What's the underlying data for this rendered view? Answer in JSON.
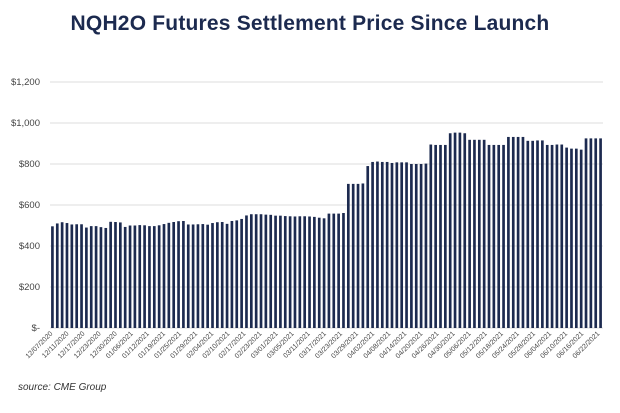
{
  "title": "NQH2O Futures Settlement Price Since Launch",
  "source": "source: CME Group",
  "chart_data": {
    "type": "bar",
    "title": "NQH2O Futures Settlement Price Since Launch",
    "xlabel": "",
    "ylabel": "",
    "ylim": [
      0,
      1200
    ],
    "yticks": [
      0,
      200,
      400,
      600,
      800,
      1000,
      1200
    ],
    "ytick_labels": [
      "$-",
      "$200",
      "$400",
      "$600",
      "$800",
      "$1,000",
      "$1,200"
    ],
    "grid": true,
    "bar_color": "#1c2a4f",
    "xtick_labels": [
      "12/07/2020",
      "12/11/2020",
      "12/17/2020",
      "12/23/2020",
      "12/30/2020",
      "01/06/2021",
      "01/12/2021",
      "01/19/2021",
      "01/25/2021",
      "01/29/2021",
      "02/04/2021",
      "02/10/2021",
      "02/17/2021",
      "02/23/2021",
      "03/01/2021",
      "03/05/2021",
      "03/11/2021",
      "03/17/2021",
      "03/23/2021",
      "03/29/2021",
      "04/02/2021",
      "04/08/2021",
      "04/14/2021",
      "04/20/2021",
      "04/26/2021",
      "04/30/2021",
      "05/06/2021",
      "05/12/2021",
      "05/18/2021",
      "05/24/2021",
      "05/28/2021",
      "06/04/2021",
      "06/10/2021",
      "06/16/2021",
      "06/22/2021"
    ],
    "values": [
      496,
      510,
      516,
      512,
      505,
      506,
      506,
      490,
      497,
      497,
      492,
      488,
      518,
      517,
      515,
      493,
      500,
      500,
      502,
      501,
      497,
      497,
      501,
      507,
      513,
      517,
      521,
      522,
      505,
      505,
      506,
      507,
      504,
      512,
      516,
      517,
      508,
      522,
      525,
      532,
      549,
      555,
      555,
      555,
      553,
      552,
      548,
      548,
      546,
      545,
      544,
      545,
      545,
      544,
      542,
      538,
      535,
      558,
      558,
      558,
      561,
      703,
      703,
      703,
      705,
      790,
      810,
      812,
      810,
      810,
      805,
      808,
      808,
      808,
      800,
      800,
      800,
      802,
      895,
      893,
      893,
      893,
      950,
      953,
      953,
      950,
      918,
      918,
      918,
      918,
      893,
      893,
      893,
      893,
      932,
      932,
      932,
      932,
      913,
      913,
      915,
      915,
      893,
      893,
      895,
      895,
      880,
      875,
      875,
      870,
      925,
      925,
      925,
      925
    ]
  }
}
